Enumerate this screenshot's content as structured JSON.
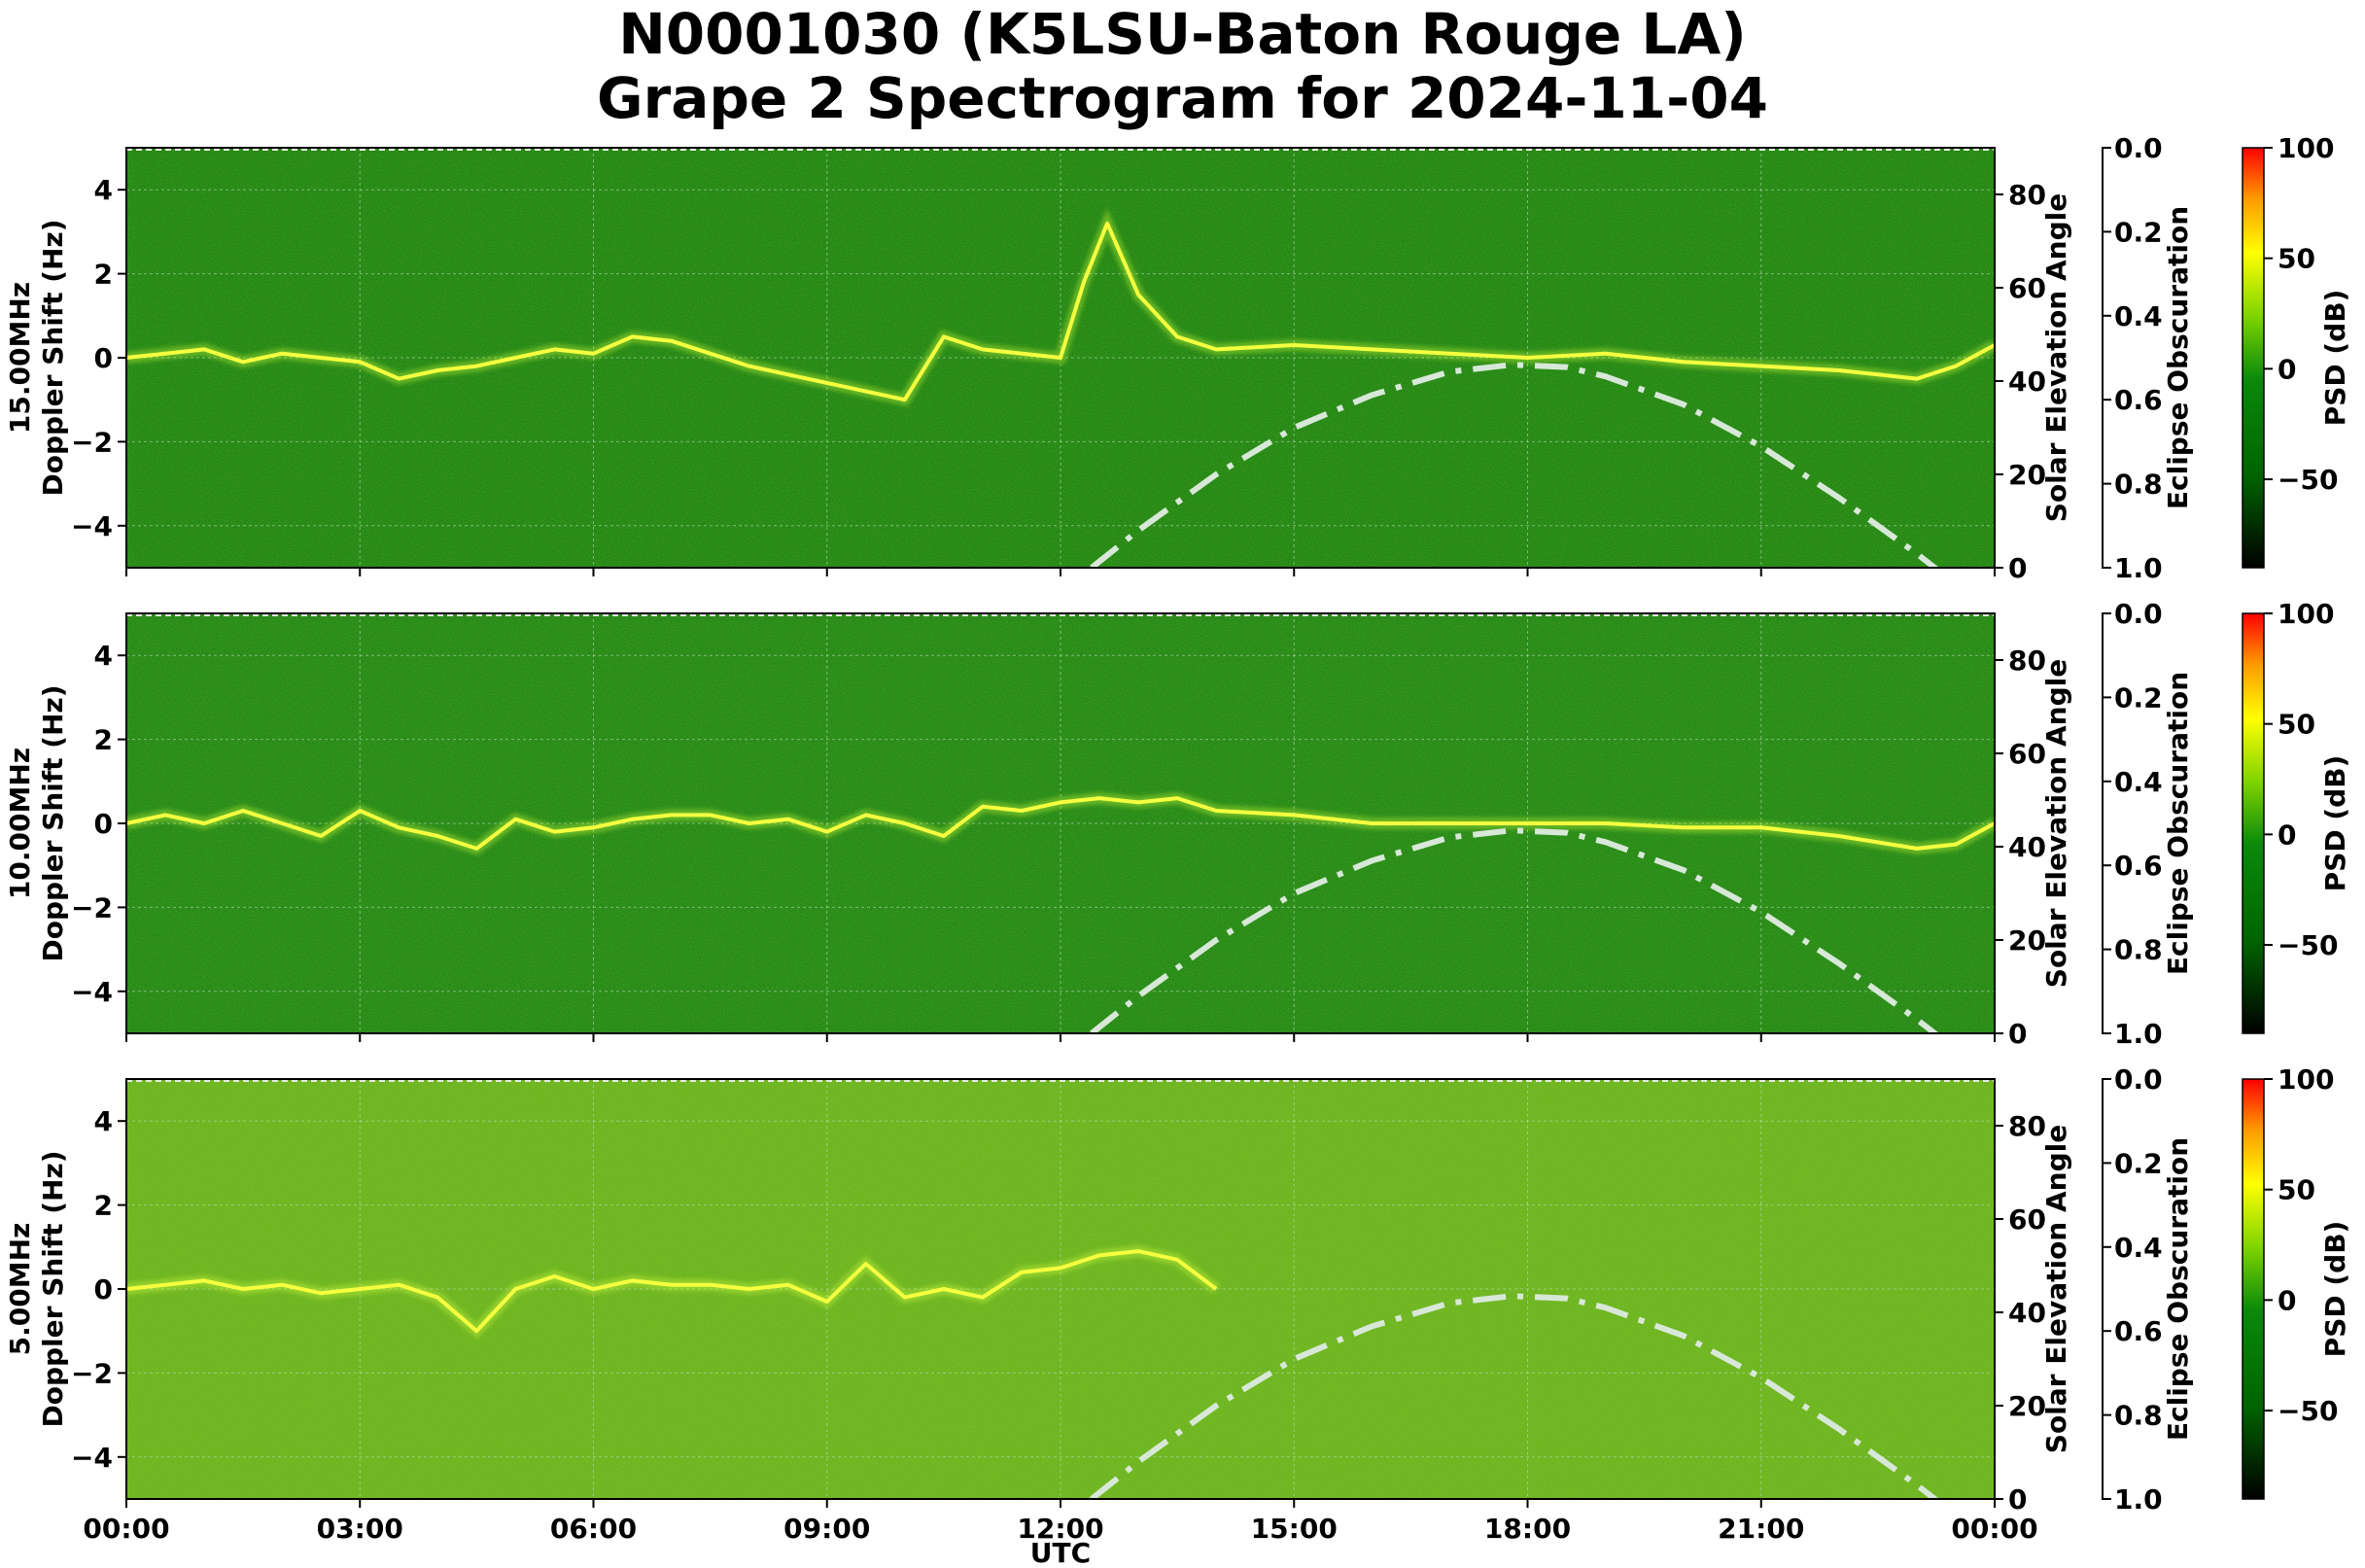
{
  "title_line1": "N0001030 (K5LSU-Baton Rouge LA)",
  "title_line2": "Grape 2 Spectrogram for 2024-11-04",
  "chart_data": {
    "type": "heatmap",
    "xlabel": "UTC",
    "x_ticks": [
      "00:00",
      "03:00",
      "06:00",
      "09:00",
      "12:00",
      "15:00",
      "18:00",
      "21:00",
      "00:00"
    ],
    "xlim_hours": [
      0,
      24
    ],
    "ylim": [
      -5,
      5
    ],
    "y_ticks": [
      4,
      2,
      0,
      -2,
      -4
    ],
    "grid": true,
    "right_axis_label": "Solar Elevation Angle",
    "right_axis_ticks": [
      80,
      60,
      40,
      20,
      0
    ],
    "right_axis_range": [
      0,
      90
    ],
    "eclipse_axis_label": "Eclipse Obscuration",
    "eclipse_axis_ticks": [
      "0.0",
      "0.2",
      "0.4",
      "0.6",
      "0.8",
      "1.0"
    ],
    "colorbar": {
      "label": "PSD (dB)",
      "ticks": [
        100,
        50,
        0,
        -50
      ],
      "range": [
        -90,
        100
      ],
      "colors": [
        "#000000",
        "#006400",
        "#008000",
        "#7fd400",
        "#ffff00",
        "#ff8c00",
        "#ff0000"
      ]
    },
    "solar_elevation": {
      "x_hours": [
        12.4,
        13,
        14,
        15,
        16,
        17,
        17.8,
        18.5,
        19,
        20,
        21,
        22,
        23,
        24
      ],
      "y_deg": [
        0,
        8,
        20,
        30,
        37,
        42,
        43.5,
        43,
        41,
        35,
        26,
        15,
        3,
        -10
      ],
      "style": "dash-dot",
      "color": "#d8e8d8"
    },
    "panels": [
      {
        "ylabel_line1": "15.00MHz",
        "ylabel_line2": "Doppler Shift (Hz)",
        "background": "#0a7a0a",
        "trace": {
          "x_hours": [
            0,
            0.5,
            1,
            1.5,
            2,
            2.5,
            3,
            3.5,
            4,
            4.5,
            5,
            5.5,
            6,
            6.5,
            7,
            7.5,
            8,
            8.5,
            9,
            10,
            10.5,
            11,
            12,
            12.3,
            12.6,
            13,
            13.5,
            14,
            15,
            16,
            17,
            18,
            19,
            20,
            21,
            22,
            22.5,
            23,
            23.5,
            24
          ],
          "y_hz": [
            0,
            0.1,
            0.2,
            -0.1,
            0.1,
            0,
            -0.1,
            -0.5,
            -0.3,
            -0.2,
            0,
            0.2,
            0.1,
            0.5,
            0.4,
            0.1,
            -0.2,
            -0.4,
            -0.6,
            -1.0,
            0.5,
            0.2,
            0,
            1.8,
            3.2,
            1.5,
            0.5,
            0.2,
            0.3,
            0.2,
            0.1,
            0,
            0.1,
            -0.1,
            -0.2,
            -0.3,
            -0.4,
            -0.5,
            -0.2,
            0.3
          ]
        }
      },
      {
        "ylabel_line1": "10.00MHz",
        "ylabel_line2": "Doppler Shift (Hz)",
        "background": "#0d7d0d",
        "trace": {
          "x_hours": [
            0,
            0.5,
            1,
            1.5,
            2,
            2.5,
            3,
            3.5,
            4,
            4.5,
            5,
            5.5,
            6,
            6.5,
            7,
            7.5,
            8,
            8.5,
            9,
            9.5,
            10,
            10.5,
            11,
            11.5,
            12,
            12.5,
            13,
            13.5,
            14,
            15,
            16,
            17,
            18,
            19,
            20,
            21,
            22,
            23,
            23.5,
            24
          ],
          "y_hz": [
            0,
            0.2,
            0,
            0.3,
            0,
            -0.3,
            0.3,
            -0.1,
            -0.3,
            -0.6,
            0.1,
            -0.2,
            -0.1,
            0.1,
            0.2,
            0.2,
            0,
            0.1,
            -0.2,
            0.2,
            0,
            -0.3,
            0.4,
            0.3,
            0.5,
            0.6,
            0.5,
            0.6,
            0.3,
            0.2,
            0,
            0,
            0,
            0,
            -0.1,
            -0.1,
            -0.3,
            -0.6,
            -0.5,
            0
          ]
        }
      },
      {
        "ylabel_line1": "5.00MHz",
        "ylabel_line2": "Doppler Shift (Hz)",
        "background": "#5fae18",
        "trace": {
          "x_hours": [
            0,
            0.5,
            1,
            1.5,
            2,
            2.5,
            3,
            3.5,
            4,
            4.5,
            5,
            5.5,
            6,
            6.5,
            7,
            7.5,
            8,
            8.5,
            9,
            9.5,
            10,
            10.5,
            11,
            11.5,
            12,
            12.5,
            13,
            13.5,
            14
          ],
          "y_hz": [
            0,
            0.1,
            0.2,
            0,
            0.1,
            -0.1,
            0,
            0.1,
            -0.2,
            -1.0,
            0,
            0.3,
            0,
            0.2,
            0.1,
            0.1,
            0,
            0.1,
            -0.3,
            0.6,
            -0.2,
            0,
            -0.2,
            0.4,
            0.5,
            0.8,
            0.9,
            0.7,
            0
          ]
        }
      }
    ]
  }
}
